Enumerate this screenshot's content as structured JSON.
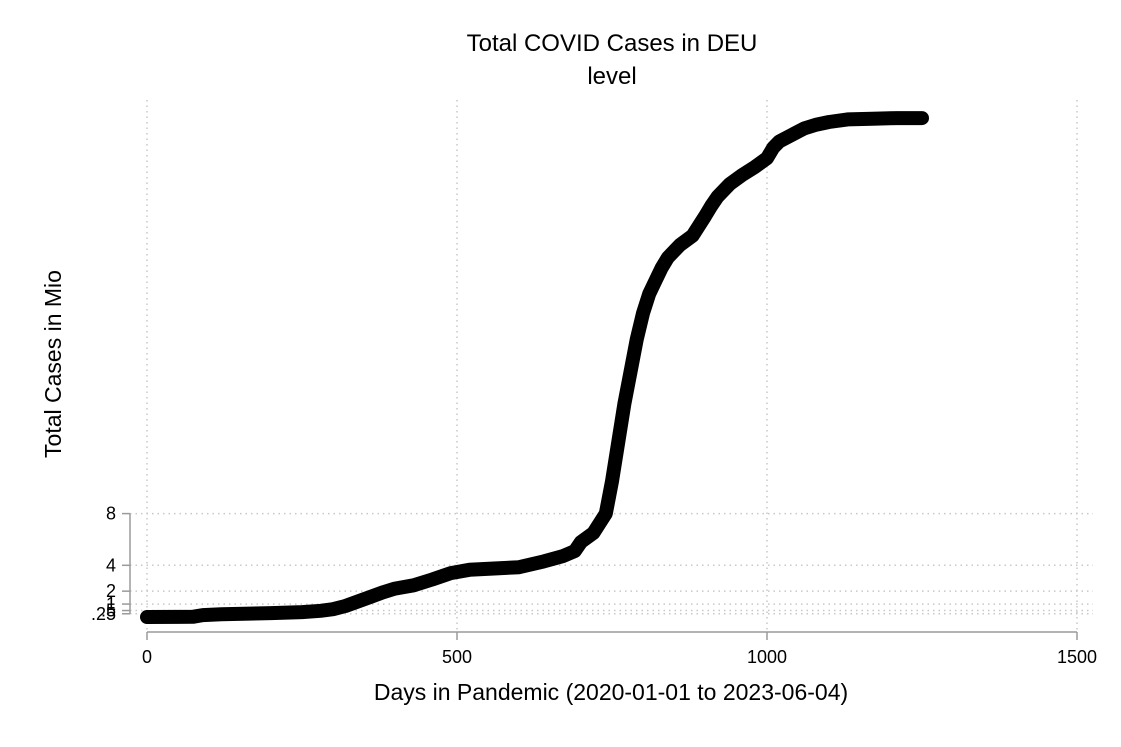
{
  "chart_data": {
    "type": "line",
    "title": "Total COVID Cases in DEU",
    "subtitle": "level",
    "xlabel": "Days in Pandemic (2020-01-01 to 2023-06-04)",
    "ylabel": "Total Cases in Mio",
    "xlim": [
      0,
      1500
    ],
    "x_ticks": [
      0,
      500,
      1000,
      1500
    ],
    "x_tick_labels": [
      "0",
      "500",
      "1000",
      "1500"
    ],
    "ylim": [
      0,
      40
    ],
    "y_ticks": [
      0.25,
      0.5,
      1,
      2,
      4,
      8
    ],
    "y_tick_labels": [
      ".25",
      ".5",
      "1",
      "2",
      "4",
      "8"
    ],
    "grid": true,
    "series": [
      {
        "x": [
          0,
          50,
          75,
          90,
          120,
          200,
          250,
          280,
          300,
          320,
          340,
          360,
          380,
          400,
          430,
          460,
          490,
          520,
          560,
          600,
          640,
          670,
          690,
          700,
          720,
          740,
          750,
          760,
          770,
          780,
          790,
          800,
          810,
          820,
          830,
          840,
          850,
          860,
          880,
          900,
          910,
          920,
          940,
          960,
          980,
          1000,
          1010,
          1020,
          1040,
          1060,
          1080,
          1100,
          1130,
          1170,
          1210,
          1250
        ],
        "values": [
          0.0,
          0.01,
          0.02,
          0.15,
          0.22,
          0.3,
          0.38,
          0.48,
          0.6,
          0.85,
          1.2,
          1.55,
          1.9,
          2.2,
          2.45,
          2.9,
          3.4,
          3.65,
          3.75,
          3.85,
          4.3,
          4.7,
          5.1,
          5.8,
          6.5,
          8.0,
          10.5,
          13.5,
          16.5,
          19.0,
          21.5,
          23.5,
          25.0,
          26.0,
          27.0,
          27.8,
          28.3,
          28.8,
          29.5,
          31.0,
          31.8,
          32.5,
          33.5,
          34.2,
          34.8,
          35.5,
          36.3,
          36.8,
          37.3,
          37.8,
          38.1,
          38.3,
          38.5,
          38.55,
          38.6,
          38.6
        ]
      }
    ]
  }
}
